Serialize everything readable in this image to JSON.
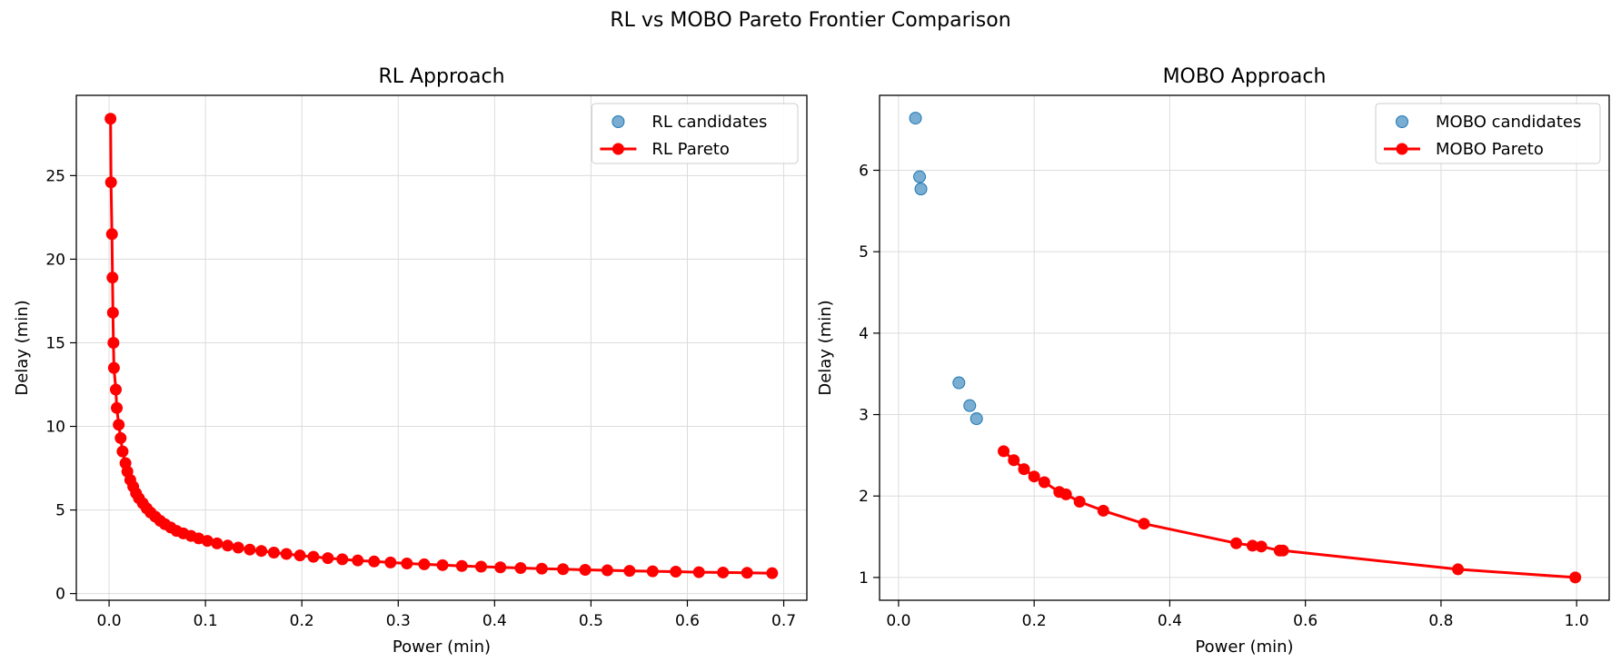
{
  "figure": {
    "title": "RL vs MOBO Pareto Frontier Comparison"
  },
  "colors": {
    "candidates": "#1f77b4",
    "pareto": "#ff0000",
    "grid": "#dcdcdc"
  },
  "chart_data": [
    {
      "type": "line",
      "title": "RL Approach",
      "xlabel": "Power (min)",
      "ylabel": "Delay (min)",
      "xlim": [
        -0.034,
        0.724
      ],
      "ylim": [
        -0.4,
        29.8
      ],
      "xticks": [
        0.0,
        0.1,
        0.2,
        0.3,
        0.4,
        0.5,
        0.6,
        0.7
      ],
      "xtick_labels": [
        "0.0",
        "0.1",
        "0.2",
        "0.3",
        "0.4",
        "0.5",
        "0.6",
        "0.7"
      ],
      "yticks": [
        0,
        5,
        10,
        15,
        20,
        25
      ],
      "ytick_labels": [
        "0",
        "5",
        "10",
        "15",
        "20",
        "25"
      ],
      "grid": true,
      "legend": "top-right",
      "series": [
        {
          "name": "RL candidates",
          "kind": "scatter",
          "points": []
        },
        {
          "name": "RL Pareto",
          "kind": "line-markers",
          "points": [
            [
              0.0015,
              28.4
            ],
            [
              0.002,
              24.6
            ],
            [
              0.003,
              21.5
            ],
            [
              0.0035,
              18.9
            ],
            [
              0.004,
              16.8
            ],
            [
              0.0045,
              15.0
            ],
            [
              0.005,
              13.5
            ],
            [
              0.007,
              12.2
            ],
            [
              0.008,
              11.1
            ],
            [
              0.01,
              10.1
            ],
            [
              0.012,
              9.3
            ],
            [
              0.014,
              8.5
            ],
            [
              0.017,
              7.8
            ],
            [
              0.019,
              7.3
            ],
            [
              0.022,
              6.8
            ],
            [
              0.025,
              6.4
            ],
            [
              0.028,
              6.0
            ],
            [
              0.031,
              5.7
            ],
            [
              0.035,
              5.4
            ],
            [
              0.039,
              5.1
            ],
            [
              0.043,
              4.85
            ],
            [
              0.048,
              4.6
            ],
            [
              0.053,
              4.35
            ],
            [
              0.058,
              4.15
            ],
            [
              0.064,
              3.95
            ],
            [
              0.07,
              3.75
            ],
            [
              0.077,
              3.6
            ],
            [
              0.085,
              3.45
            ],
            [
              0.093,
              3.3
            ],
            [
              0.102,
              3.15
            ],
            [
              0.112,
              3.0
            ],
            [
              0.123,
              2.87
            ],
            [
              0.134,
              2.75
            ],
            [
              0.146,
              2.63
            ],
            [
              0.158,
              2.55
            ],
            [
              0.171,
              2.45
            ],
            [
              0.184,
              2.37
            ],
            [
              0.198,
              2.28
            ],
            [
              0.212,
              2.2
            ],
            [
              0.227,
              2.12
            ],
            [
              0.242,
              2.05
            ],
            [
              0.258,
              1.98
            ],
            [
              0.275,
              1.92
            ],
            [
              0.292,
              1.86
            ],
            [
              0.309,
              1.8
            ],
            [
              0.327,
              1.75
            ],
            [
              0.346,
              1.7
            ],
            [
              0.366,
              1.65
            ],
            [
              0.386,
              1.61
            ],
            [
              0.406,
              1.57
            ],
            [
              0.427,
              1.53
            ],
            [
              0.449,
              1.49
            ],
            [
              0.471,
              1.46
            ],
            [
              0.494,
              1.42
            ],
            [
              0.517,
              1.39
            ],
            [
              0.54,
              1.36
            ],
            [
              0.564,
              1.33
            ],
            [
              0.588,
              1.31
            ],
            [
              0.612,
              1.28
            ],
            [
              0.637,
              1.26
            ],
            [
              0.662,
              1.24
            ],
            [
              0.688,
              1.22
            ]
          ]
        }
      ]
    },
    {
      "type": "line",
      "title": "MOBO Approach",
      "xlabel": "Power (min)",
      "ylabel": "Delay (min)",
      "xlim": [
        -0.028,
        1.048
      ],
      "ylim": [
        0.72,
        6.92
      ],
      "xticks": [
        0.0,
        0.2,
        0.4,
        0.6,
        0.8,
        1.0
      ],
      "xtick_labels": [
        "0.0",
        "0.2",
        "0.4",
        "0.6",
        "0.8",
        "1.0"
      ],
      "yticks": [
        1,
        2,
        3,
        4,
        5,
        6
      ],
      "ytick_labels": [
        "1",
        "2",
        "3",
        "4",
        "5",
        "6"
      ],
      "grid": true,
      "legend": "top-right",
      "series": [
        {
          "name": "MOBO candidates",
          "kind": "scatter",
          "points": [
            [
              0.025,
              6.64
            ],
            [
              0.031,
              5.92
            ],
            [
              0.033,
              5.77
            ],
            [
              0.089,
              3.39
            ],
            [
              0.105,
              3.11
            ],
            [
              0.115,
              2.95
            ]
          ]
        },
        {
          "name": "MOBO Pareto",
          "kind": "line-markers",
          "points": [
            [
              0.155,
              2.55
            ],
            [
              0.17,
              2.44
            ],
            [
              0.185,
              2.33
            ],
            [
              0.2,
              2.24
            ],
            [
              0.215,
              2.17
            ],
            [
              0.237,
              2.05
            ],
            [
              0.247,
              2.02
            ],
            [
              0.267,
              1.93
            ],
            [
              0.302,
              1.82
            ],
            [
              0.362,
              1.66
            ],
            [
              0.498,
              1.42
            ],
            [
              0.522,
              1.39
            ],
            [
              0.535,
              1.38
            ],
            [
              0.562,
              1.33
            ],
            [
              0.567,
              1.33
            ],
            [
              0.825,
              1.1
            ],
            [
              0.998,
              1.0
            ]
          ]
        }
      ]
    }
  ]
}
